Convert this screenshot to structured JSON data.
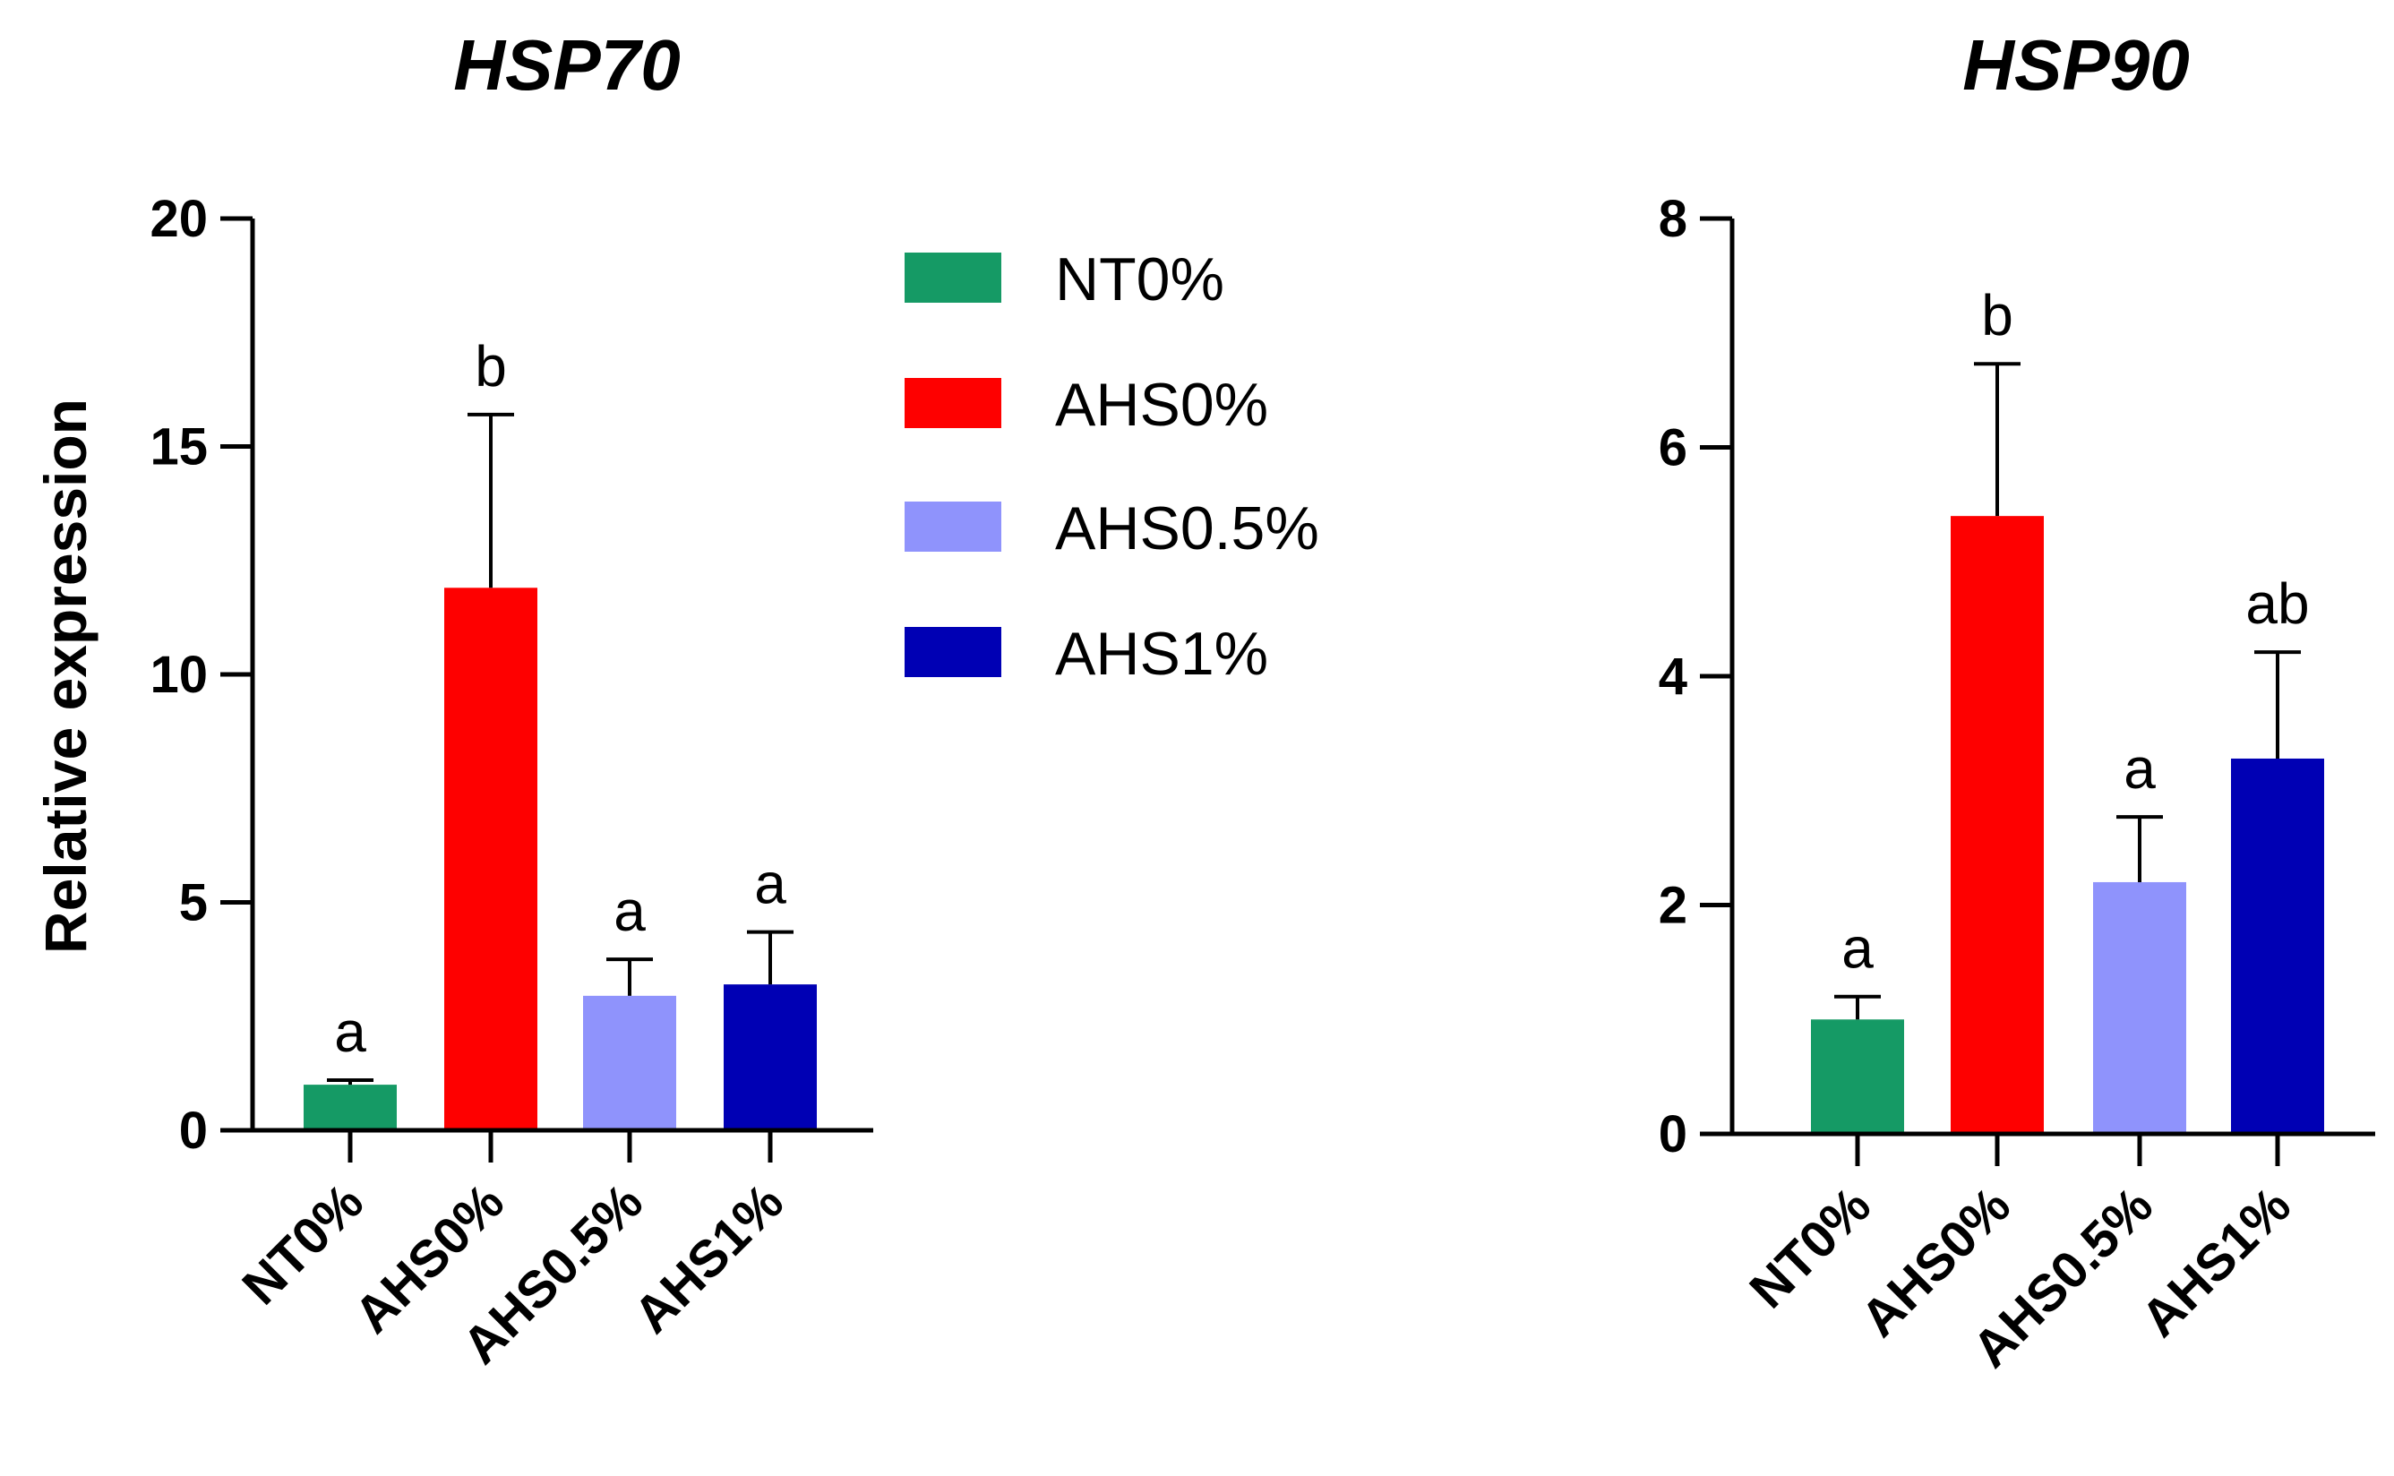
{
  "chart_data": [
    {
      "type": "bar",
      "title": "HSP70",
      "xlabel": "",
      "ylabel": "Relative expression",
      "ylim": [
        0,
        20
      ],
      "yticks": [
        0,
        5,
        10,
        15,
        20
      ],
      "categories": [
        "NT0%",
        "AHS0%",
        "AHS0.5%",
        "AHS1%"
      ],
      "values": [
        1.0,
        11.9,
        2.95,
        3.2
      ],
      "errors": [
        0.1,
        3.8,
        0.8,
        1.15
      ],
      "significance": [
        "a",
        "b",
        "a",
        "a"
      ],
      "colors": [
        "#159a65",
        "#fe0000",
        "#8f93fc",
        "#0000b4"
      ]
    },
    {
      "type": "bar",
      "title": "HSP90",
      "xlabel": "",
      "ylabel": "",
      "ylim": [
        0,
        8
      ],
      "yticks": [
        0,
        2,
        4,
        6,
        8
      ],
      "categories": [
        "NT0%",
        "AHS0%",
        "AHS0.5%",
        "AHS1%"
      ],
      "values": [
        1.0,
        5.4,
        2.2,
        3.28
      ],
      "errors": [
        0.2,
        1.33,
        0.57,
        0.93
      ],
      "significance": [
        "a",
        "b",
        "a",
        "ab"
      ],
      "colors": [
        "#159a65",
        "#fe0000",
        "#8f93fc",
        "#0000b4"
      ]
    }
  ],
  "legend": {
    "position": "center-top",
    "items": [
      {
        "label": "NT0%",
        "color": "#159a65"
      },
      {
        "label": "AHS0%",
        "color": "#fe0000"
      },
      {
        "label": "AHS0.5%",
        "color": "#8f93fc"
      },
      {
        "label": "AHS1%",
        "color": "#0000b4"
      }
    ]
  }
}
